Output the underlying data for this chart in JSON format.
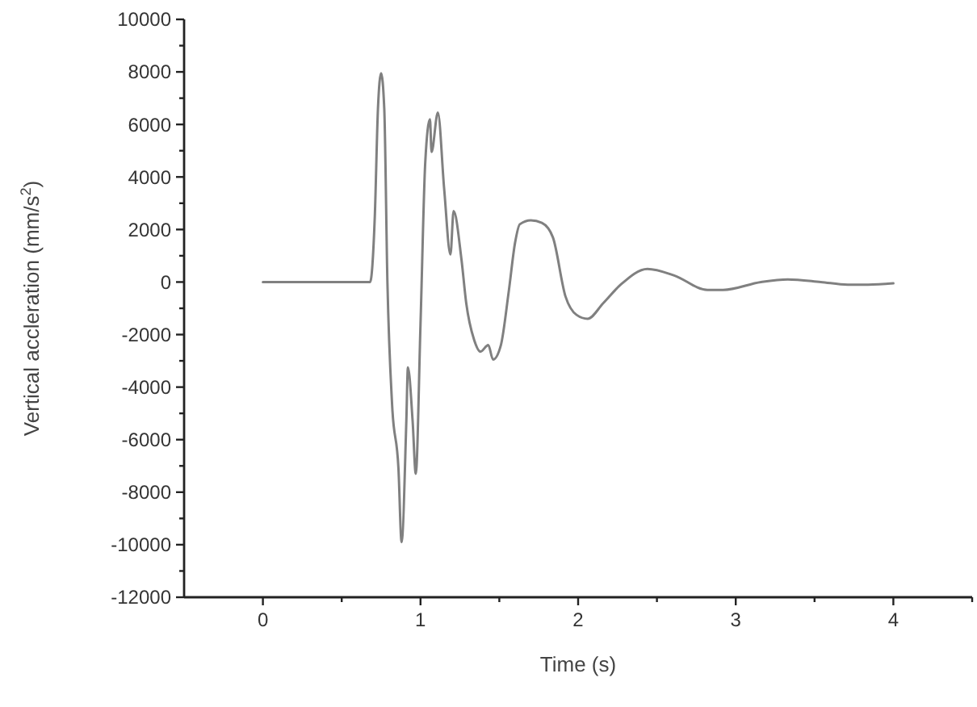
{
  "chart_data": {
    "type": "line",
    "xlabel": "Time (s)",
    "ylabel": "Vertical accleration (mm/s$^{2}$)",
    "x": [
      0,
      0.68,
      0.71,
      0.73,
      0.75,
      0.77,
      0.79,
      0.82,
      0.86,
      0.88,
      0.91,
      0.92,
      0.95,
      0.97,
      1.0,
      1.03,
      1.06,
      1.07,
      1.11,
      1.15,
      1.19,
      1.21,
      1.26,
      1.29,
      1.34,
      1.38,
      1.43,
      1.46,
      1.51,
      1.56,
      1.6,
      1.63,
      1.7,
      1.77,
      1.84,
      1.92,
      1.99,
      2.06,
      2.16,
      2.27,
      2.44,
      2.61,
      2.82,
      2.92,
      3.16,
      3.33,
      3.54,
      3.71,
      3.84,
      4.0
    ],
    "series": [
      {
        "color": "#808080",
        "values": [
          0,
          0,
          2500,
          6600,
          7950,
          6600,
          0,
          -4700,
          -7100,
          -9900,
          -5300,
          -3250,
          -5300,
          -7300,
          -1600,
          4550,
          6200,
          4950,
          6450,
          3550,
          1050,
          2700,
          850,
          -800,
          -2200,
          -2650,
          -2400,
          -2950,
          -2400,
          -350,
          1500,
          2200,
          2350,
          2250,
          1700,
          -550,
          -1250,
          -1400,
          -800,
          -100,
          500,
          250,
          -300,
          -300,
          0,
          100,
          0,
          -100,
          -100,
          -50
        ]
      }
    ],
    "xlim": [
      -0.5,
      4.5
    ],
    "ylim": [
      -12000,
      10000
    ],
    "xticks": [
      0,
      {
        "value": 0.5,
        "label": null
      },
      1,
      {
        "value": 1.5,
        "label": null
      },
      2,
      {
        "value": 2.5,
        "label": null
      },
      3,
      {
        "value": 3.5,
        "label": null
      },
      4,
      {
        "value": 4.5,
        "label": null
      }
    ],
    "yticks": [
      -12000,
      {
        "value": -11000,
        "label": null
      },
      -10000,
      {
        "value": -9000,
        "label": null
      },
      -8000,
      {
        "value": -7000,
        "label": null
      },
      -6000,
      {
        "value": -5000,
        "label": null
      },
      -4000,
      {
        "value": -3000,
        "label": null
      },
      -2000,
      {
        "value": -1000,
        "label": null
      },
      0,
      {
        "value": 1000,
        "label": null
      },
      2000,
      {
        "value": 3000,
        "label": null
      },
      4000,
      {
        "value": 5000,
        "label": null
      },
      6000,
      {
        "value": 7000,
        "label": null
      },
      8000,
      {
        "value": 9000,
        "label": null
      },
      10000
    ],
    "line_style": "solid"
  }
}
